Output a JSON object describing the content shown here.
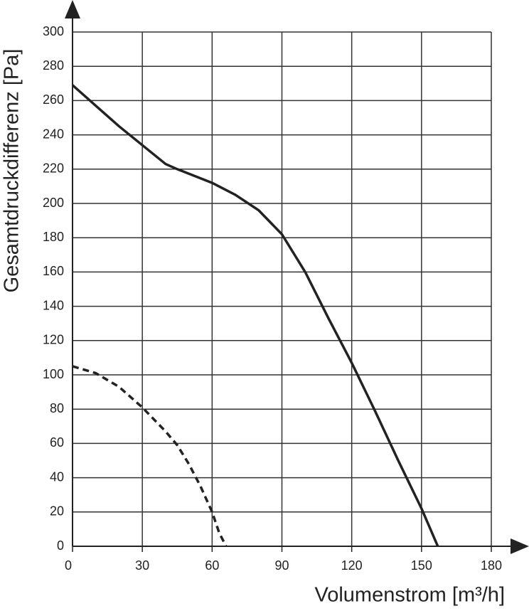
{
  "chart_data": {
    "type": "line",
    "xlabel": "Volumenstrom [m³/h]",
    "ylabel": "Gesamtdruckdifferenz [Pa]",
    "xlim": [
      0,
      180
    ],
    "xticks": [
      0,
      30,
      60,
      90,
      120,
      150,
      180
    ],
    "ylim": [
      0,
      300
    ],
    "yticks": [
      0,
      20,
      40,
      60,
      80,
      100,
      120,
      140,
      160,
      180,
      200,
      220,
      240,
      260,
      280,
      300
    ],
    "grid": true,
    "series": [
      {
        "color": "#222222",
        "dash": "solid",
        "x": [
          0,
          10,
          20,
          30,
          40,
          45,
          60,
          70,
          80,
          90,
          100,
          110,
          120,
          130,
          140,
          150,
          157
        ],
        "values": [
          269,
          257,
          245,
          234,
          223,
          220,
          212,
          205,
          196,
          182,
          160,
          133,
          107,
          79,
          50,
          22,
          0
        ]
      },
      {
        "color": "#222222",
        "dash": "dashed",
        "x": [
          0,
          10,
          20,
          30,
          40,
          45,
          50,
          55,
          60,
          63,
          66
        ],
        "values": [
          105,
          101,
          93,
          81,
          67,
          59,
          48,
          35,
          20,
          8,
          0
        ]
      }
    ]
  }
}
